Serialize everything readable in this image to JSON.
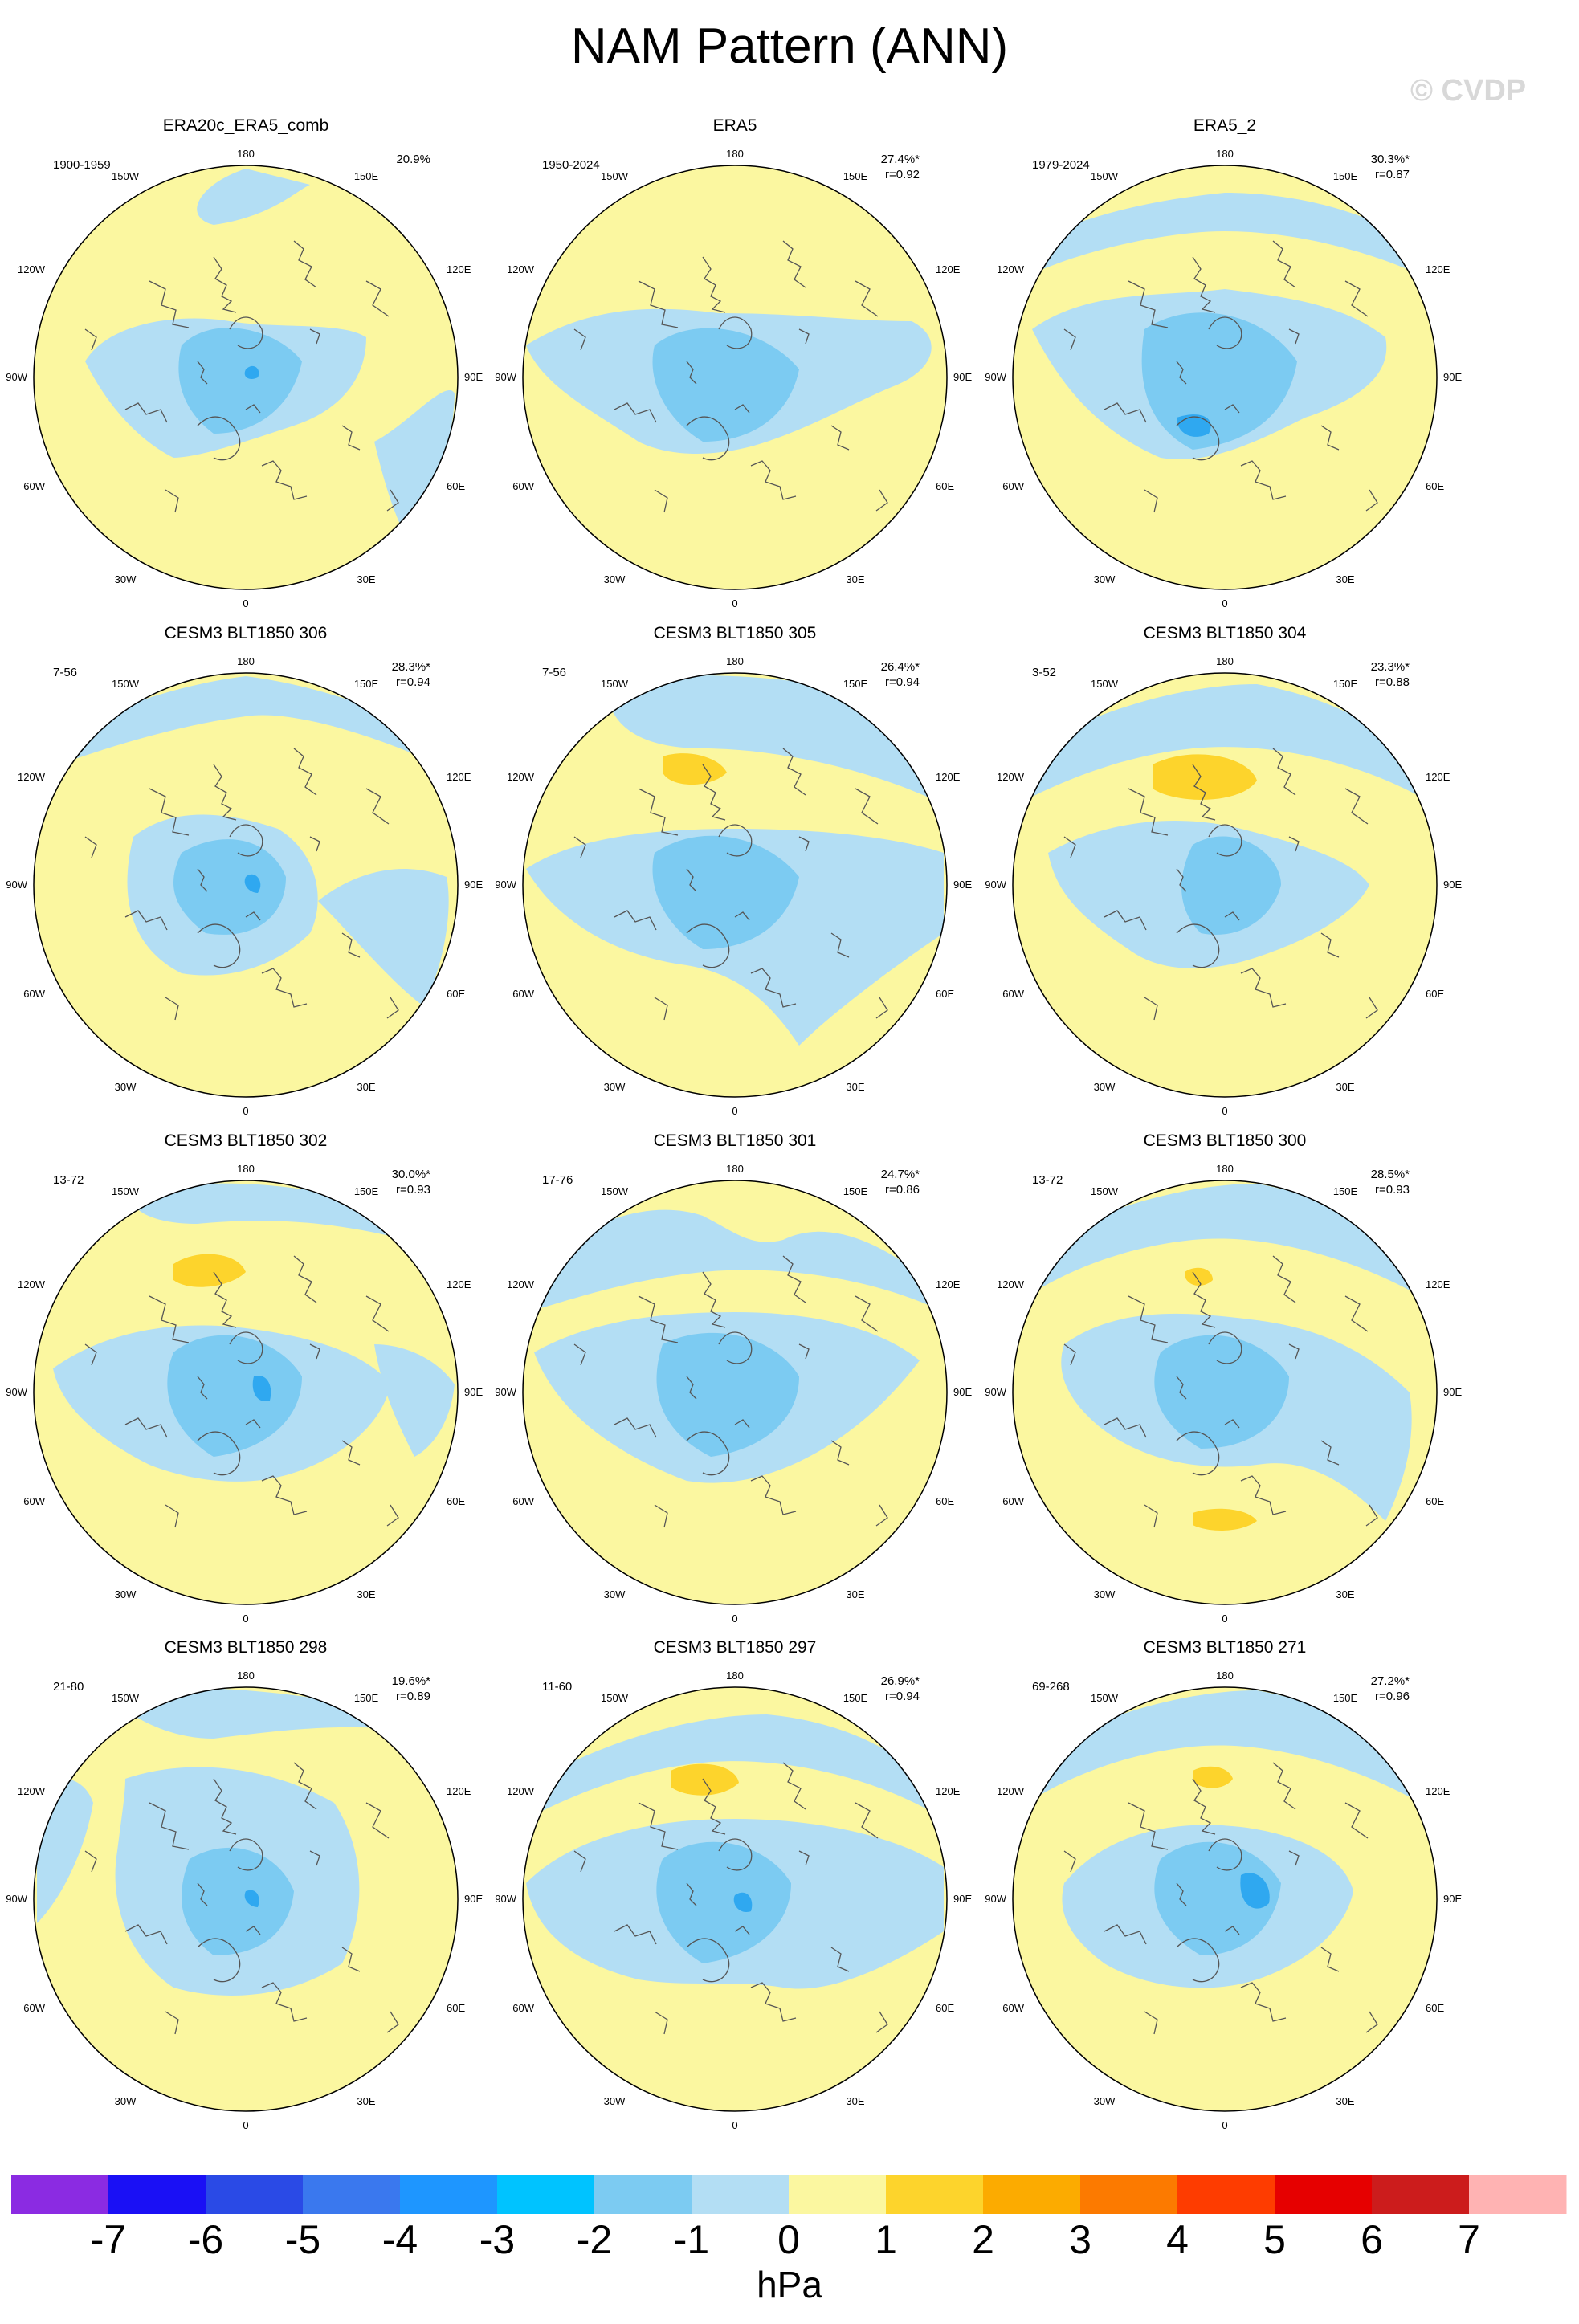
{
  "title": "NAM Pattern (ANN)",
  "copyright": "© CVDP",
  "lon_labels": {
    "t": "180",
    "b": "0",
    "l": "90W",
    "r": "90E",
    "tl1": "150W",
    "tl2": "120W",
    "tr1": "150E",
    "tr2": "120E",
    "bl1": "60W",
    "bl2": "30W",
    "br1": "60E",
    "br2": "30E"
  },
  "panels": [
    {
      "title": "ERA20c_ERA5_comb",
      "period": "1900-1959",
      "pct": "20.9%",
      "r": ""
    },
    {
      "title": "ERA5",
      "period": "1950-2024",
      "pct": "27.4%*",
      "r": "r=0.92"
    },
    {
      "title": "ERA5_2",
      "period": "1979-2024",
      "pct": "30.3%*",
      "r": "r=0.87"
    },
    {
      "title": "CESM3 BLT1850 306",
      "period": "7-56",
      "pct": "28.3%*",
      "r": "r=0.94"
    },
    {
      "title": "CESM3 BLT1850 305",
      "period": "7-56",
      "pct": "26.4%*",
      "r": "r=0.94"
    },
    {
      "title": "CESM3 BLT1850 304",
      "period": "3-52",
      "pct": "23.3%*",
      "r": "r=0.88"
    },
    {
      "title": "CESM3 BLT1850 302",
      "period": "13-72",
      "pct": "30.0%*",
      "r": "r=0.93"
    },
    {
      "title": "CESM3 BLT1850 301",
      "period": "17-76",
      "pct": "24.7%*",
      "r": "r=0.86"
    },
    {
      "title": "CESM3 BLT1850 300",
      "period": "13-72",
      "pct": "28.5%*",
      "r": "r=0.93"
    },
    {
      "title": "CESM3 BLT1850 298",
      "period": "21-80",
      "pct": "19.6%*",
      "r": "r=0.89"
    },
    {
      "title": "CESM3 BLT1850 297",
      "period": "11-60",
      "pct": "26.9%*",
      "r": "r=0.94"
    },
    {
      "title": "CESM3 BLT1850 271",
      "period": "69-268",
      "pct": "27.2%*",
      "r": "r=0.96"
    }
  ],
  "colorbar": {
    "colors": [
      "#8b2be2",
      "#1a10f5",
      "#2a4ae6",
      "#3a78ee",
      "#1e96ff",
      "#00c3ff",
      "#7ccbf2",
      "#b3def4",
      "#fbf7a0",
      "#fdd42c",
      "#fcab00",
      "#fc7a00",
      "#fe3c00",
      "#e60000",
      "#cc1c1c",
      "#ffb3b3"
    ],
    "labels": [
      "-7",
      "-6",
      "-5",
      "-4",
      "-3",
      "-2",
      "-1",
      "0",
      "1",
      "2",
      "3",
      "4",
      "5",
      "6",
      "7"
    ],
    "units": "hPa"
  }
}
